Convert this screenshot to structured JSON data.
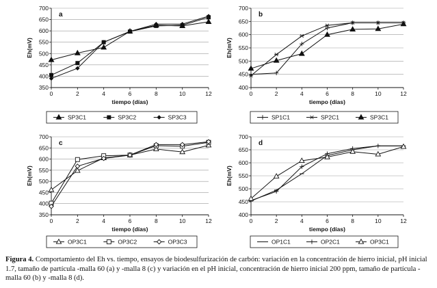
{
  "caption": {
    "label": "Figura 4.",
    "text": "Comportamiento del Eh vs. tiempo, ensayos de biodesulfurización de carbón: variación en la concentración de hierro inicial, pH inicial 1.7, tamaño de partícula -malla 60 (a) y -malla 8 (c) y variación en el pH inicial, concentración de hierro inicial 200 ppm, tamaño de partícula -malla 60 (b) y -malla 8 (d)."
  },
  "chart_data": [
    {
      "id": "a",
      "panel_label": "a",
      "type": "line",
      "xlabel": "tiempo (días)",
      "ylabel": "Eh(mV)",
      "xlim": [
        0,
        12
      ],
      "ylim": [
        350,
        700
      ],
      "xticks": [
        0,
        2,
        4,
        6,
        8,
        10,
        12
      ],
      "yticks": [
        350,
        400,
        450,
        500,
        550,
        600,
        650,
        700
      ],
      "series": [
        {
          "name": "SP3C1",
          "marker": "triangle",
          "x": [
            0,
            2,
            4,
            6,
            8,
            10,
            12
          ],
          "values": [
            472,
            502,
            527,
            598,
            625,
            622,
            640
          ]
        },
        {
          "name": "SP3C2",
          "marker": "square",
          "x": [
            0,
            2,
            4,
            6,
            8,
            10,
            12
          ],
          "values": [
            405,
            458,
            550,
            597,
            622,
            625,
            660
          ]
        },
        {
          "name": "SP3C3",
          "marker": "diamond",
          "x": [
            0,
            2,
            4,
            6,
            8,
            10,
            12
          ],
          "values": [
            390,
            435,
            550,
            598,
            630,
            630,
            665
          ]
        }
      ]
    },
    {
      "id": "b",
      "panel_label": "b",
      "type": "line",
      "xlabel": "tiempo (días)",
      "ylabel": "Eh(mV)",
      "xlim": [
        0,
        12
      ],
      "ylim": [
        400,
        700
      ],
      "xticks": [
        0,
        2,
        4,
        6,
        8,
        10,
        12
      ],
      "yticks": [
        400,
        450,
        500,
        550,
        600,
        650,
        700
      ],
      "series": [
        {
          "name": "SP1C1",
          "marker": "plus",
          "x": [
            0,
            2,
            4,
            6,
            8,
            10,
            12
          ],
          "values": [
            450,
            455,
            565,
            625,
            645,
            645,
            645
          ]
        },
        {
          "name": "SP2C1",
          "marker": "star",
          "x": [
            0,
            2,
            4,
            6,
            8,
            10,
            12
          ],
          "values": [
            445,
            525,
            595,
            635,
            645,
            645,
            645
          ]
        },
        {
          "name": "SP3C1",
          "marker": "triangle",
          "x": [
            0,
            2,
            4,
            6,
            8,
            10,
            12
          ],
          "values": [
            472,
            502,
            528,
            600,
            620,
            622,
            640
          ]
        }
      ]
    },
    {
      "id": "c",
      "panel_label": "c",
      "type": "line",
      "xlabel": "tiempo (días)",
      "ylabel": "Eh(mV)",
      "xlim": [
        0,
        12
      ],
      "ylim": [
        350,
        700
      ],
      "xticks": [
        0,
        2,
        4,
        6,
        8,
        10,
        12
      ],
      "yticks": [
        350,
        400,
        450,
        500,
        550,
        600,
        650,
        700
      ],
      "series": [
        {
          "name": "OP3C1",
          "marker": "triangle-open",
          "x": [
            0,
            2,
            4,
            6,
            8,
            10,
            12
          ],
          "values": [
            462,
            548,
            605,
            618,
            645,
            632,
            662
          ]
        },
        {
          "name": "OP3C2",
          "marker": "square-open",
          "x": [
            0,
            2,
            4,
            6,
            8,
            10,
            12
          ],
          "values": [
            402,
            598,
            615,
            618,
            660,
            658,
            675
          ]
        },
        {
          "name": "OP3C3",
          "marker": "diamond-open",
          "x": [
            0,
            2,
            4,
            6,
            8,
            10,
            12
          ],
          "values": [
            388,
            568,
            603,
            618,
            665,
            665,
            678
          ]
        }
      ]
    },
    {
      "id": "d",
      "panel_label": "d",
      "type": "line",
      "xlabel": "tiempo (días)",
      "ylabel": "Eh(mV)",
      "xlim": [
        0,
        12
      ],
      "ylim": [
        400,
        700
      ],
      "xticks": [
        0,
        2,
        4,
        6,
        8,
        10,
        12
      ],
      "yticks": [
        400,
        450,
        500,
        550,
        600,
        650,
        700
      ],
      "series": [
        {
          "name": "OP1C1",
          "marker": "dash",
          "x": [
            0,
            2,
            4,
            6,
            8,
            10,
            12
          ],
          "values": [
            453,
            495,
            558,
            628,
            650,
            665,
            665
          ]
        },
        {
          "name": "OP2C1",
          "marker": "plus",
          "x": [
            0,
            2,
            4,
            6,
            8,
            10,
            12
          ],
          "values": [
            455,
            490,
            585,
            635,
            655,
            665,
            665
          ]
        },
        {
          "name": "OP3C1",
          "marker": "triangle-open",
          "x": [
            0,
            2,
            4,
            6,
            8,
            10,
            12
          ],
          "values": [
            462,
            548,
            608,
            622,
            643,
            633,
            662
          ]
        }
      ]
    }
  ]
}
